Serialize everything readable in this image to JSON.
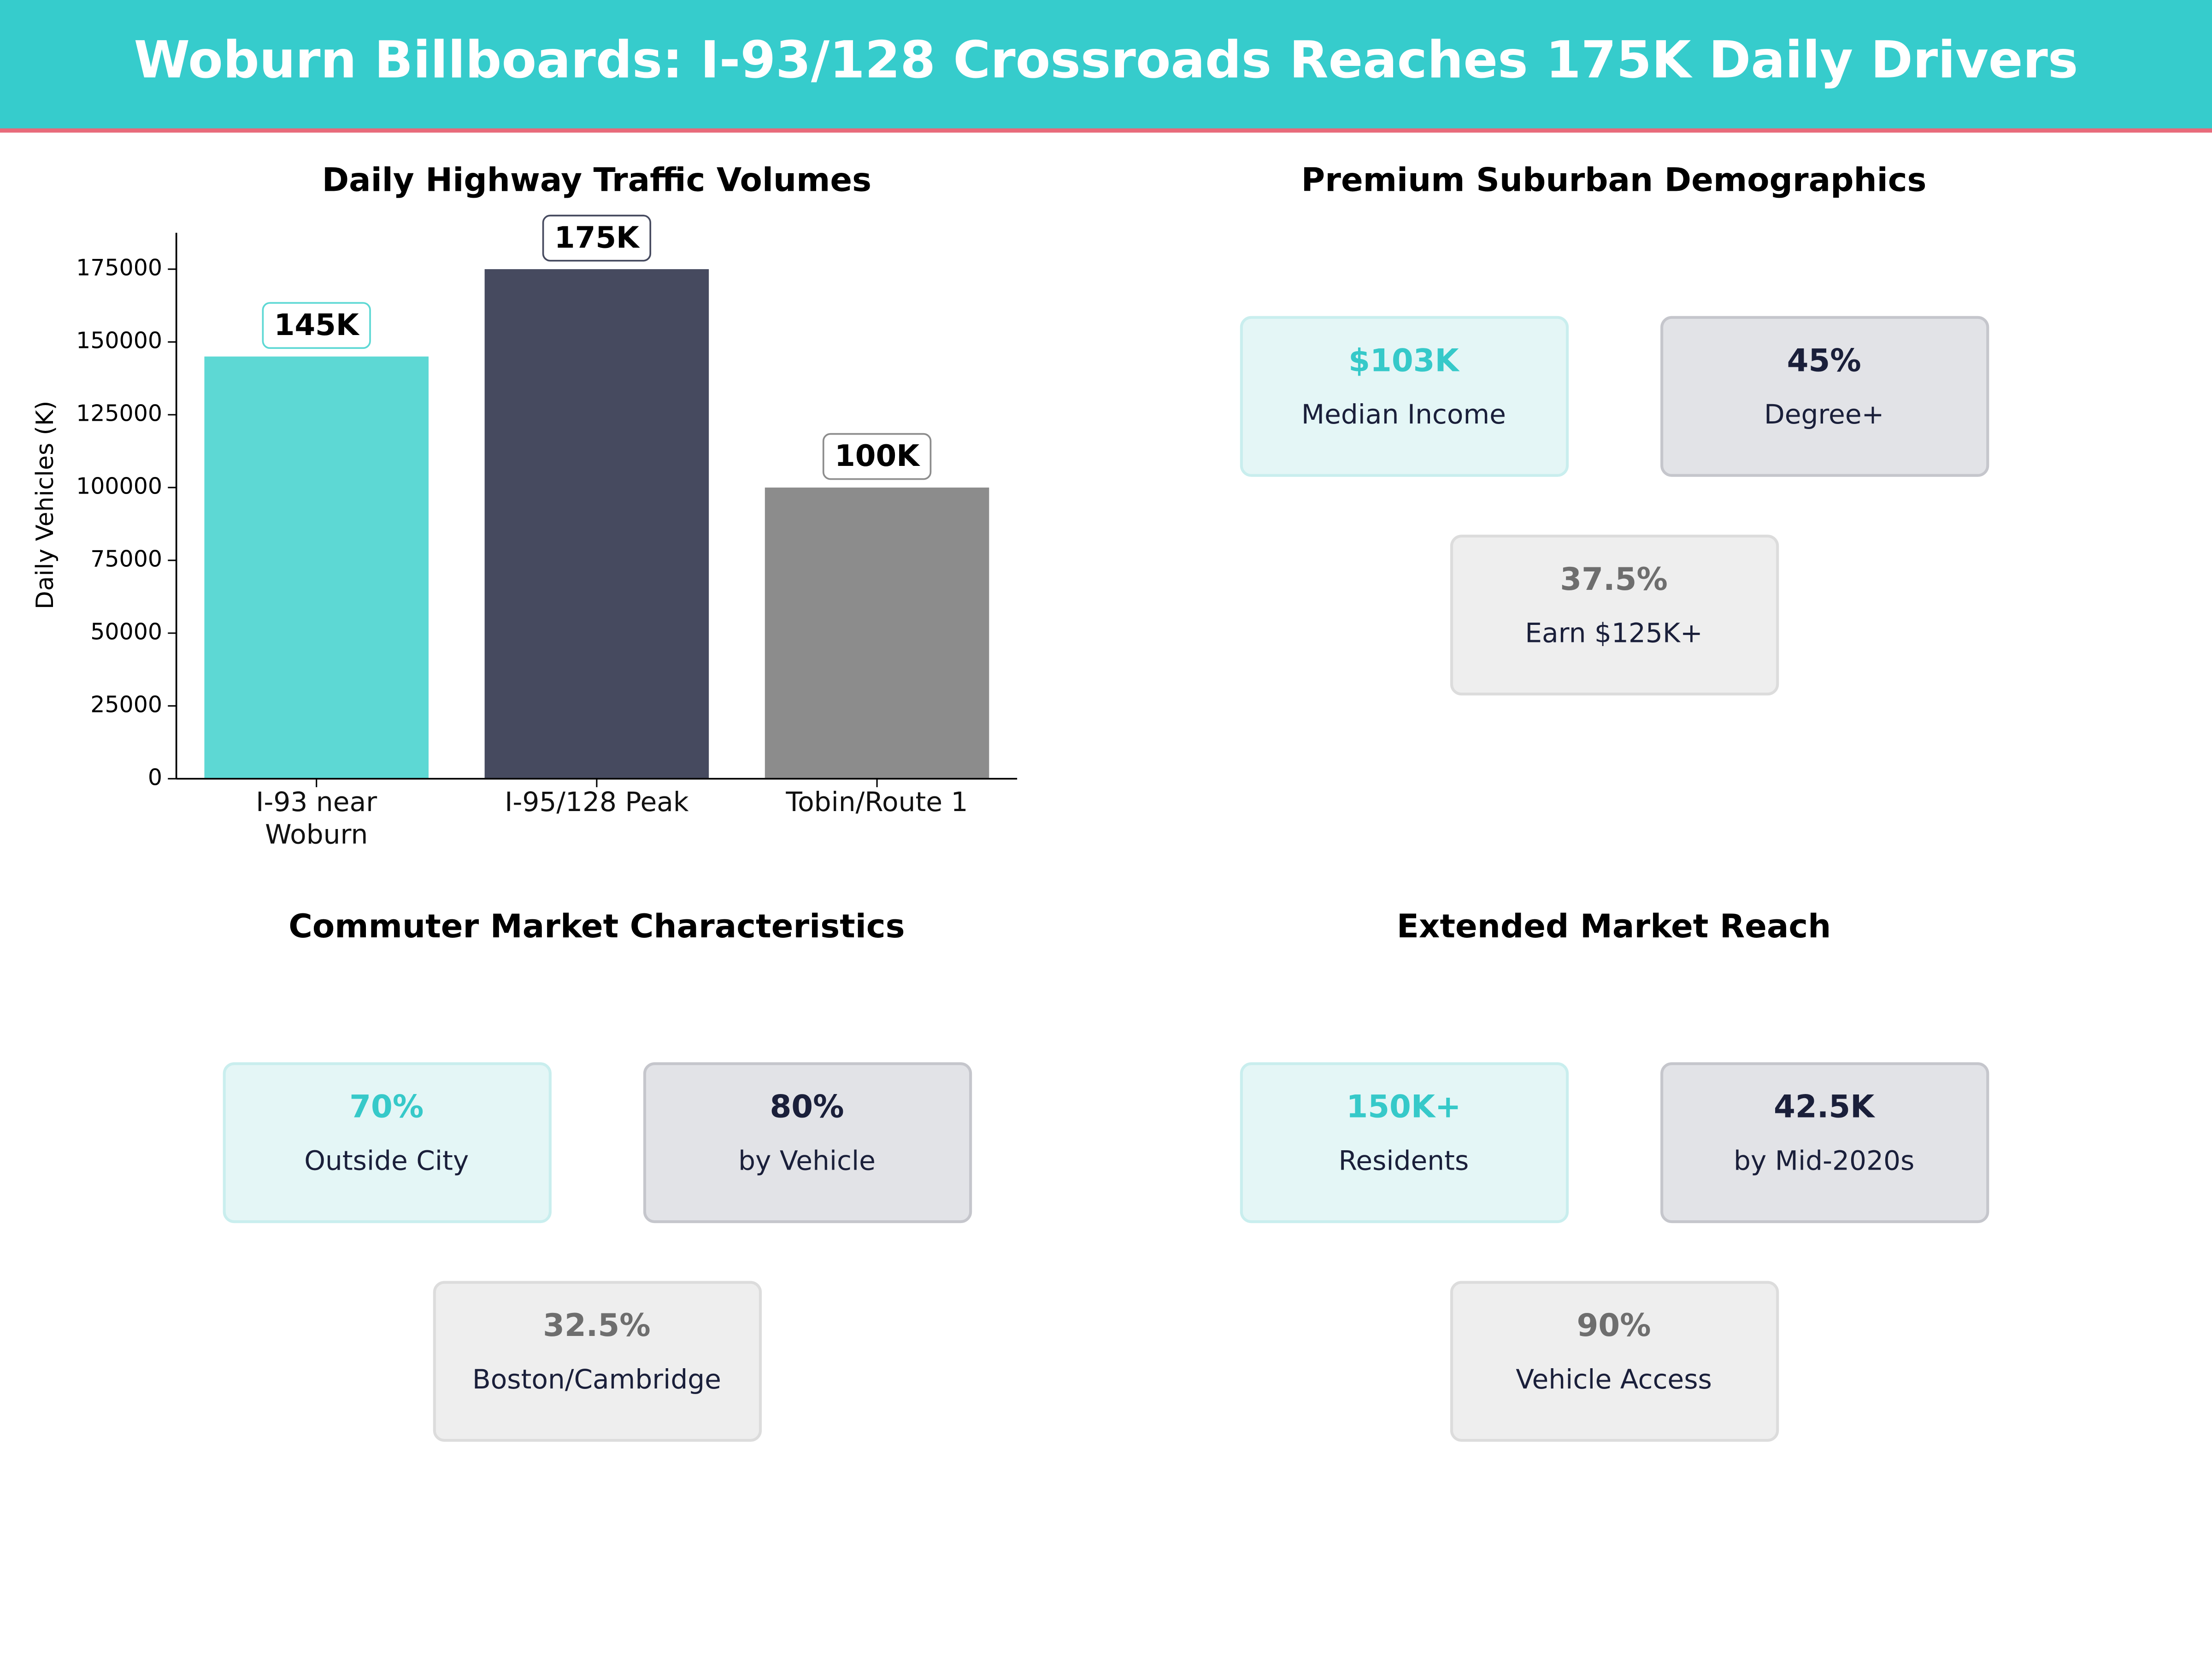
{
  "header": {
    "title": "Woburn Billboards: I-93/128 Crossroads Reaches 175K Daily Drivers"
  },
  "chart_data": {
    "type": "bar",
    "title": "Daily Highway Traffic Volumes",
    "y_label": "Daily Vehicles (K)",
    "categories": [
      "I-93 near Woburn",
      "I-95/128 Peak",
      "Tobin/Route 1"
    ],
    "values": [
      145000,
      175000,
      100000
    ],
    "value_labels": [
      "145K",
      "175K",
      "100K"
    ],
    "colors": [
      "#5dd8d4",
      "#464a5f",
      "#8c8c8c"
    ],
    "ylim": [
      0,
      187500
    ],
    "yticks": [
      0,
      25000,
      50000,
      75000,
      100000,
      125000,
      150000,
      175000
    ]
  },
  "panels": [
    {
      "title": "Premium Suburban Demographics",
      "cards": [
        {
          "value": "$103K",
          "label": "Median Income"
        },
        {
          "value": "45%",
          "label": "Degree+"
        },
        {
          "value": "37.5%",
          "label": "Earn $125K+"
        }
      ]
    },
    {
      "title": "Commuter Market Characteristics",
      "cards": [
        {
          "value": "70%",
          "label": "Outside City"
        },
        {
          "value": "80%",
          "label": "by Vehicle"
        },
        {
          "value": "32.5%",
          "label": "Boston/Cambridge"
        }
      ]
    },
    {
      "title": "Extended Market Reach",
      "cards": [
        {
          "value": "150K+",
          "label": "Residents"
        },
        {
          "value": "42.5K",
          "label": "by Mid-2020s"
        },
        {
          "value": "90%",
          "label": "Vehicle Access"
        }
      ]
    }
  ]
}
